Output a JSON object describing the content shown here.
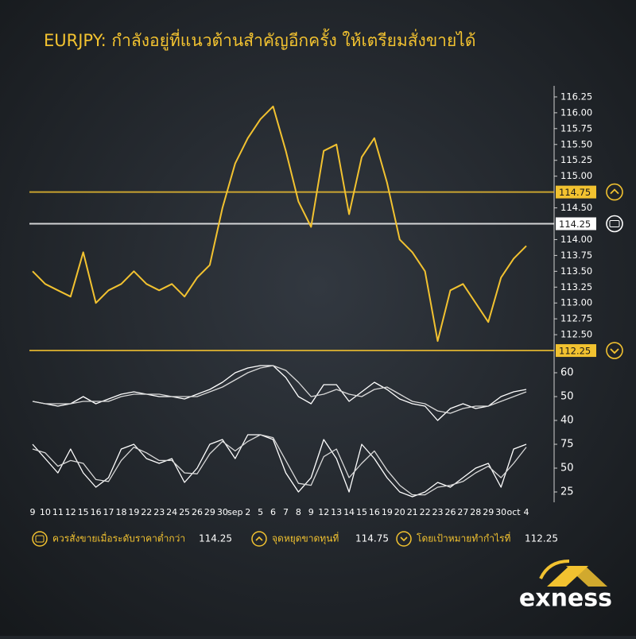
{
  "chart_data": [
    {
      "type": "line",
      "title": "EURJPY: กำลังอยู่ที่แนวต้านสำคัญอีกครั้ง ให้เตรียมสั่งขายได้",
      "categories": [
        "9",
        "10",
        "11",
        "12",
        "15",
        "16",
        "17",
        "18",
        "19",
        "22",
        "23",
        "24",
        "25",
        "26",
        "29",
        "30",
        "sep",
        "2",
        "5",
        "6",
        "7",
        "8",
        "9",
        "12",
        "13",
        "14",
        "15",
        "16",
        "19",
        "20",
        "21",
        "22",
        "23",
        "26",
        "27",
        "28",
        "29",
        "30",
        "oct",
        "4"
      ],
      "series": [
        {
          "color": "#f2c230",
          "values": [
            113.5,
            113.3,
            113.2,
            113.1,
            113.8,
            113.0,
            113.2,
            113.3,
            113.5,
            113.3,
            113.2,
            113.3,
            113.1,
            113.4,
            113.6,
            114.5,
            115.2,
            115.6,
            115.9,
            116.1,
            115.4,
            114.6,
            114.2,
            115.4,
            115.5,
            114.4,
            115.3,
            115.6,
            114.9,
            114.0,
            113.8,
            113.5,
            112.4,
            113.2,
            113.3,
            113.0,
            112.7,
            113.4,
            113.7,
            113.9
          ]
        }
      ],
      "ylim": [
        112.0,
        116.5
      ],
      "yticks": [
        {
          "value": 112.5,
          "label": "112.50"
        },
        112.75,
        {
          "value": 113,
          "label": "113.00"
        },
        113.25,
        {
          "value": 113.5,
          "label": "113.50"
        },
        113.75,
        {
          "value": 114,
          "label": "114.00"
        },
        {
          "value": 114.5,
          "label": "114.50"
        },
        {
          "value": 115,
          "label": "115.00"
        },
        115.25,
        {
          "value": 115.5,
          "label": "115.50"
        },
        115.75,
        {
          "value": 116,
          "label": "116.00"
        },
        116.25
      ],
      "levels": [
        {
          "value": 114.75,
          "color": "#f2c230"
        },
        {
          "value": 114.25,
          "color": "#ffffff"
        },
        {
          "value": 112.25,
          "color": "#f2c230"
        }
      ]
    },
    {
      "type": "line",
      "ylim": [
        35,
        65
      ],
      "yticks": [
        40,
        50,
        60
      ],
      "series": [
        {
          "color": "#ffffff",
          "values": [
            48,
            47,
            46,
            47,
            50,
            47,
            49,
            51,
            52,
            51,
            50,
            50,
            49,
            51,
            53,
            56,
            60,
            62,
            63,
            63,
            58,
            50,
            47,
            55,
            55,
            48,
            52,
            56,
            53,
            49,
            47,
            46,
            40,
            45,
            47,
            45,
            46,
            50,
            52,
            53
          ]
        },
        {
          "color": "#d8d8d8",
          "values": [
            48,
            47,
            47,
            47,
            48,
            48,
            48,
            50,
            51,
            51,
            51,
            50,
            50,
            50,
            52,
            54,
            57,
            60,
            62,
            63,
            61,
            56,
            50,
            51,
            53,
            51,
            50,
            53,
            54,
            51,
            48,
            47,
            44,
            43,
            45,
            46,
            46,
            48,
            50,
            52
          ]
        }
      ]
    },
    {
      "type": "line",
      "ylim": [
        15,
        85
      ],
      "yticks": [
        25,
        50,
        75
      ],
      "series": [
        {
          "color": "#ffffff",
          "values": [
            75,
            60,
            45,
            70,
            45,
            30,
            40,
            70,
            75,
            60,
            55,
            60,
            35,
            50,
            75,
            80,
            60,
            85,
            85,
            80,
            45,
            25,
            40,
            80,
            60,
            25,
            75,
            60,
            40,
            25,
            20,
            25,
            35,
            30,
            40,
            50,
            55,
            30,
            70,
            75
          ]
        },
        {
          "color": "#d8d8d8",
          "values": [
            70,
            66,
            52,
            58,
            55,
            38,
            36,
            58,
            72,
            66,
            58,
            58,
            45,
            44,
            65,
            78,
            68,
            78,
            85,
            82,
            58,
            34,
            32,
            62,
            70,
            40,
            55,
            68,
            48,
            32,
            22,
            22,
            30,
            32,
            36,
            45,
            52,
            40,
            55,
            72
          ]
        }
      ]
    }
  ],
  "legend": [
    {
      "text": "ควรสั่งขายเมื่อระดับราคาต่ำกว่า",
      "value": 114.25
    },
    {
      "text": "จุดหยุดขาดทุนที่",
      "value": 114.75
    },
    {
      "text": "โดยเป้าหมายทำกำไรที่",
      "value": 112.25
    }
  ],
  "brand": "exness"
}
